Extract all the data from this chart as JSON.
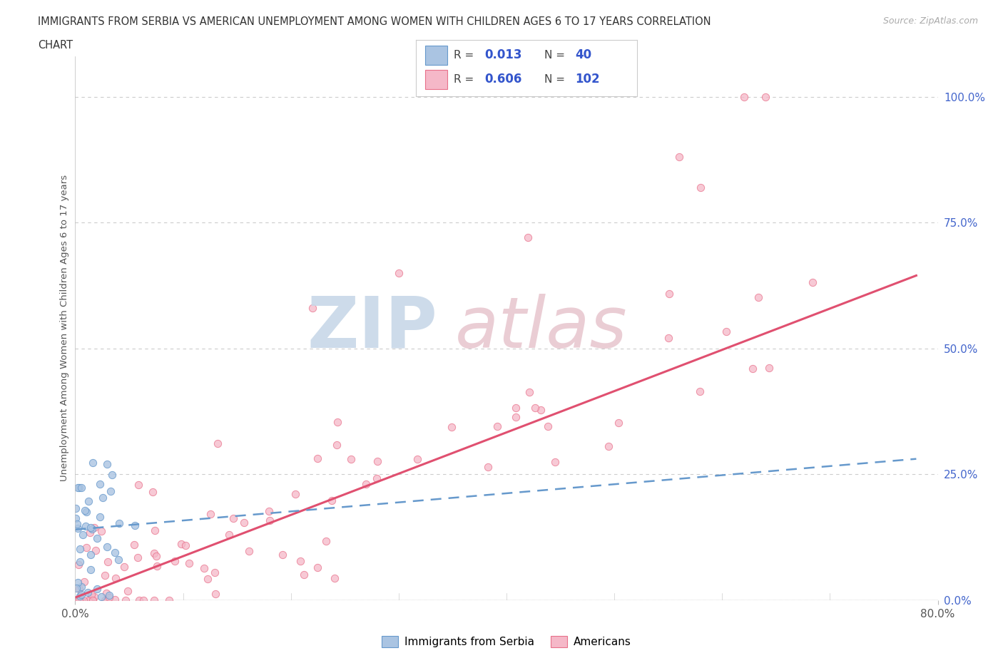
{
  "title_line1": "IMMIGRANTS FROM SERBIA VS AMERICAN UNEMPLOYMENT AMONG WOMEN WITH CHILDREN AGES 6 TO 17 YEARS CORRELATION",
  "title_line2": "CHART",
  "source_text": "Source: ZipAtlas.com",
  "ylabel": "Unemployment Among Women with Children Ages 6 to 17 years",
  "xlim": [
    0.0,
    0.8
  ],
  "ylim": [
    0.0,
    1.08
  ],
  "ytick_labels": [
    "0.0%",
    "25.0%",
    "50.0%",
    "75.0%",
    "100.0%"
  ],
  "ytick_values": [
    0.0,
    0.25,
    0.5,
    0.75,
    1.0
  ],
  "serbia_color": "#aac4e2",
  "serbia_edge": "#6699cc",
  "american_color": "#f5b8c8",
  "american_edge": "#e8708a",
  "serbia_line_color": "#6699cc",
  "american_line_color": "#e05070",
  "legend_serbia_R": "0.013",
  "legend_serbia_N": "40",
  "legend_american_R": "0.606",
  "legend_american_N": "102",
  "am_trend_slope": 0.82,
  "am_trend_intercept": 0.005,
  "sb_trend_slope": 0.18,
  "sb_trend_intercept": 0.14
}
